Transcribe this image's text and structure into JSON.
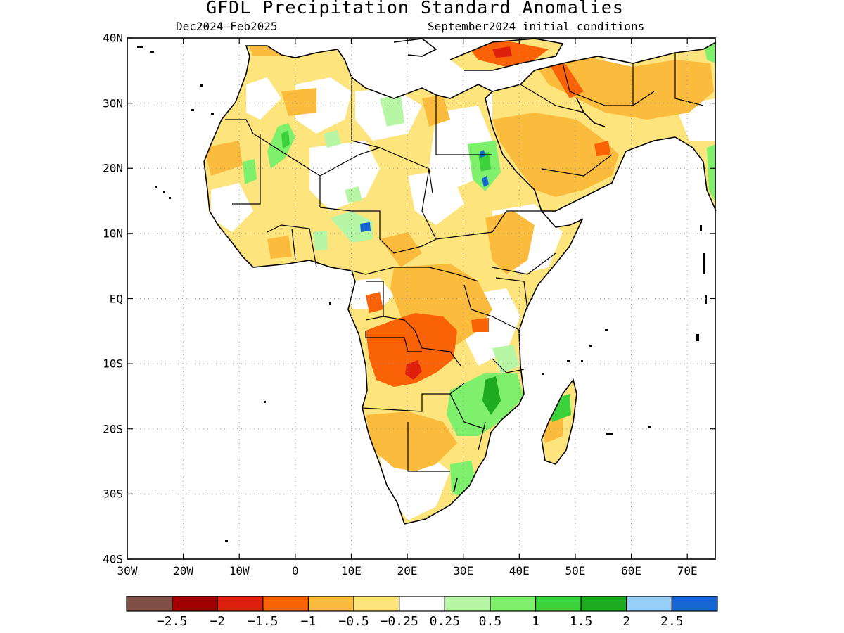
{
  "title": "GFDL Precipitation Standard Anomalies",
  "period": "Dec2024–Feb2025",
  "initial_conditions": "September2024 initial conditions",
  "lon_labels": [
    "30W",
    "20W",
    "10W",
    "0",
    "10E",
    "20E",
    "30E",
    "40E",
    "50E",
    "60E",
    "70E"
  ],
  "lon_values": [
    -30,
    -20,
    -10,
    0,
    10,
    20,
    30,
    40,
    50,
    60,
    70
  ],
  "lat_labels": [
    "40N",
    "30N",
    "20N",
    "10N",
    "EQ",
    "10S",
    "20S",
    "30S",
    "40S"
  ],
  "lat_values": [
    40,
    30,
    20,
    10,
    0,
    -10,
    -20,
    -30,
    -40
  ],
  "extent": {
    "lon_min": -30,
    "lon_max": 75,
    "lat_min": -40,
    "lat_max": 40
  },
  "colorbar": {
    "colors": [
      "#7f5045",
      "#a00000",
      "#de1f0e",
      "#fa6207",
      "#fbbb3c",
      "#fde47c",
      "#ffffff",
      "#b6f6a4",
      "#7ef06c",
      "#3cd23c",
      "#1fab1f",
      "#97cff9",
      "#1566d4"
    ],
    "labels": [
      "−2.5",
      "−2",
      "−1.5",
      "−1",
      "−0.5",
      "−0.25",
      "0.25",
      "0.5",
      "1",
      "1.5",
      "2",
      "2.5"
    ]
  },
  "anomaly_regions": [
    {
      "category": "-0.5 to -0.25",
      "color": "#fde47c",
      "lon": [
        -17,
        52
      ],
      "lat": [
        -34,
        37
      ]
    },
    {
      "category": "-1 to -0.5",
      "color": "#fbbb3c",
      "lon": [
        36,
        57
      ],
      "lat": [
        14,
        28
      ]
    },
    {
      "category": "-1 to -0.5",
      "color": "#fbbb3c",
      "lon": [
        38,
        72
      ],
      "lat": [
        26,
        38
      ]
    },
    {
      "category": "-1 to -0.5",
      "color": "#fbbb3c",
      "lon": [
        33,
        48
      ],
      "lat": [
        0,
        12
      ]
    },
    {
      "category": "-1 to -0.5",
      "color": "#fbbb3c",
      "lon": [
        12,
        28
      ],
      "lat": [
        -30,
        -15
      ]
    },
    {
      "category": "-1.5 to -1",
      "color": "#fa6207",
      "lon": [
        13,
        30
      ],
      "lat": [
        -13,
        -3
      ]
    },
    {
      "category": "-1.5 to -1",
      "color": "#fa6207",
      "lon": [
        28,
        40
      ],
      "lat": [
        36,
        40
      ]
    },
    {
      "category": "-2 to -1.5",
      "color": "#de1f0e",
      "lon": [
        20,
        22
      ],
      "lat": [
        -12,
        -10
      ]
    },
    {
      "category": "0.5 to 1",
      "color": "#7ef06c",
      "lon": [
        30,
        36
      ],
      "lat": [
        -22,
        -10
      ]
    },
    {
      "category": "0.5 to 1",
      "color": "#7ef06c",
      "lon": [
        44,
        50
      ],
      "lat": [
        -21,
        -14
      ]
    },
    {
      "category": "0.5 to 1",
      "color": "#7ef06c",
      "lon": [
        -4,
        0
      ],
      "lat": [
        19,
        25
      ]
    },
    {
      "category": "0.5 to 1",
      "color": "#7ef06c",
      "lon": [
        27,
        33
      ],
      "lat": [
        -30,
        -25
      ]
    },
    {
      "category": "1.5 to 2",
      "color": "#1fab1f",
      "lon": [
        32,
        36
      ],
      "lat": [
        -19,
        -14
      ]
    },
    {
      "category": "2.5+",
      "color": "#1566d4",
      "lon": [
        11,
        13
      ],
      "lat": [
        10,
        12
      ]
    },
    {
      "category": "2.5+",
      "color": "#1566d4",
      "lon": [
        33,
        35
      ],
      "lat": [
        17,
        19
      ]
    }
  ]
}
